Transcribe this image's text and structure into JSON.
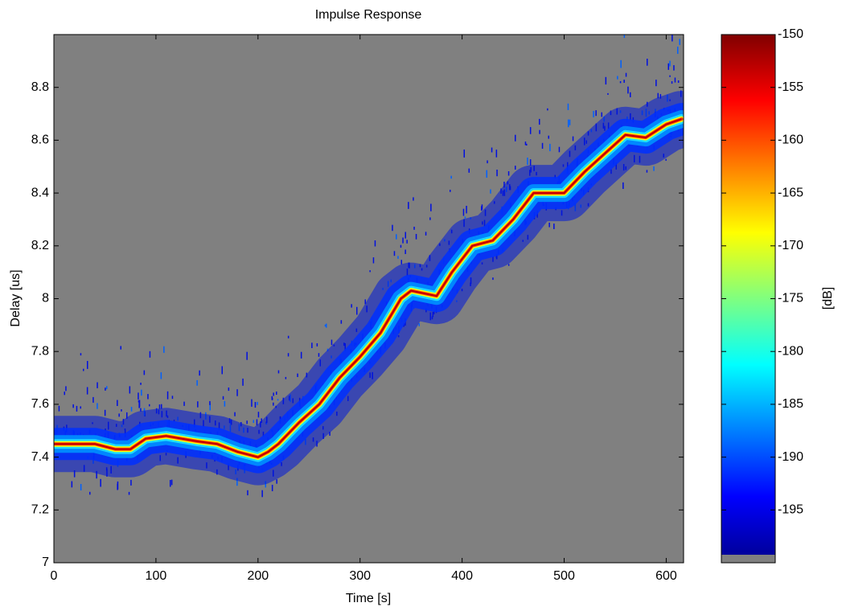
{
  "chart_data": {
    "type": "heatmap",
    "title": "Impulse Response",
    "xlabel": "Time [s]",
    "ylabel": "Delay [us]",
    "x": [
      0,
      20,
      40,
      60,
      75,
      90,
      110,
      140,
      160,
      180,
      200,
      210,
      220,
      240,
      260,
      280,
      300,
      320,
      340,
      350,
      375,
      390,
      410,
      430,
      450,
      470,
      500,
      520,
      540,
      560,
      580,
      600,
      615
    ],
    "values": [
      7.45,
      7.45,
      7.45,
      7.43,
      7.43,
      7.47,
      7.48,
      7.46,
      7.45,
      7.42,
      7.4,
      7.42,
      7.45,
      7.53,
      7.6,
      7.7,
      7.78,
      7.87,
      8.0,
      8.03,
      8.01,
      8.1,
      8.2,
      8.22,
      8.3,
      8.4,
      8.4,
      8.48,
      8.55,
      8.62,
      8.61,
      8.66,
      8.68
    ],
    "xlim": [
      0,
      617
    ],
    "xticks": [
      0,
      100,
      200,
      300,
      400,
      500,
      600
    ],
    "ylim": [
      7,
      9
    ],
    "yticks": [
      7,
      7.2,
      7.4,
      7.6,
      7.8,
      8,
      8.2,
      8.4,
      8.6,
      8.8
    ],
    "colormap": "jet",
    "background": "#808080",
    "colorbar_label": "[dB]",
    "clim": [
      -200,
      -150
    ],
    "cticks": [
      -150,
      -155,
      -160,
      -165,
      -170,
      -175,
      -180,
      -185,
      -190,
      -195
    ]
  }
}
